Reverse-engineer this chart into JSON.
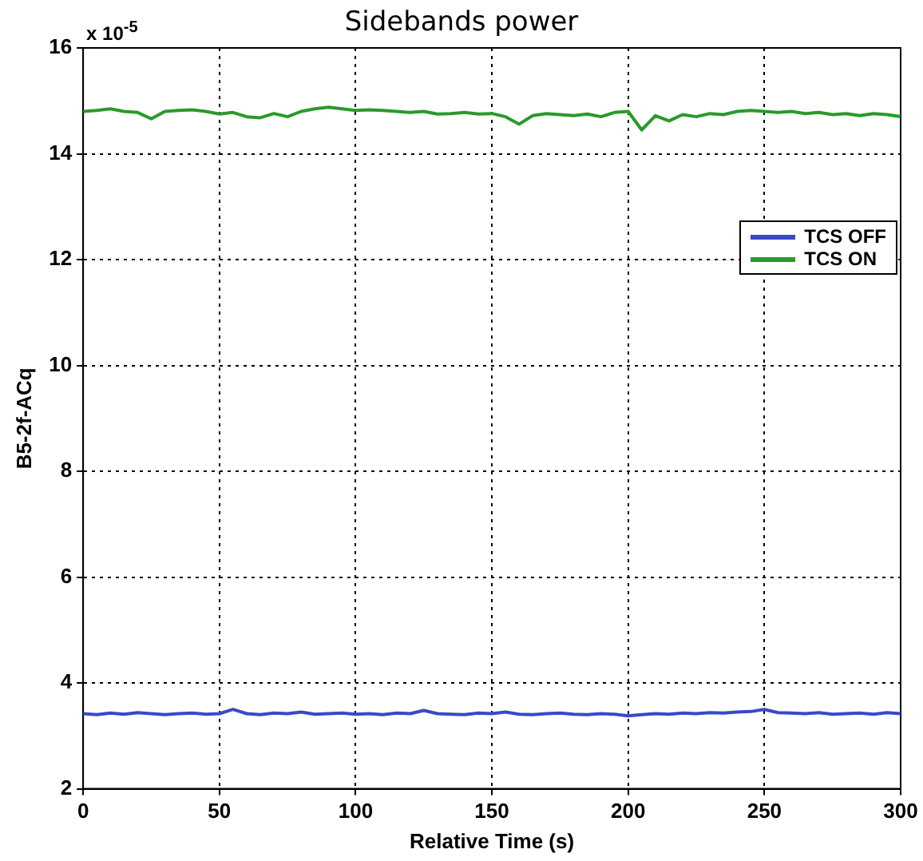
{
  "chart_data": {
    "type": "line",
    "title": "Sidebands power",
    "xlabel": "Relative Time (s)",
    "ylabel": "B5-2f-ACq",
    "annotations": [
      "x 10$^{-5}$"
    ],
    "x": [
      0,
      5,
      10,
      15,
      20,
      25,
      30,
      35,
      40,
      45,
      50,
      55,
      60,
      65,
      70,
      75,
      80,
      85,
      90,
      95,
      100,
      105,
      110,
      115,
      120,
      125,
      130,
      135,
      140,
      145,
      150,
      155,
      160,
      165,
      170,
      175,
      180,
      185,
      190,
      195,
      200,
      205,
      210,
      215,
      220,
      225,
      230,
      235,
      240,
      245,
      250,
      255,
      260,
      265,
      270,
      275,
      280,
      285,
      290,
      295,
      300
    ],
    "series": [
      {
        "name": "TCS OFF",
        "color": "#3a48c8",
        "values": [
          3.42,
          3.4,
          3.43,
          3.41,
          3.44,
          3.42,
          3.4,
          3.42,
          3.43,
          3.41,
          3.42,
          3.5,
          3.42,
          3.4,
          3.43,
          3.42,
          3.45,
          3.41,
          3.42,
          3.43,
          3.41,
          3.42,
          3.4,
          3.43,
          3.42,
          3.48,
          3.42,
          3.41,
          3.4,
          3.43,
          3.42,
          3.45,
          3.41,
          3.4,
          3.42,
          3.43,
          3.41,
          3.4,
          3.42,
          3.41,
          3.38,
          3.4,
          3.42,
          3.41,
          3.43,
          3.42,
          3.44,
          3.43,
          3.45,
          3.46,
          3.5,
          3.44,
          3.43,
          3.42,
          3.44,
          3.41,
          3.42,
          3.43,
          3.41,
          3.44,
          3.42
        ]
      },
      {
        "name": "TCS ON",
        "color": "#2a9a2a",
        "values": [
          14.8,
          14.82,
          14.85,
          14.8,
          14.78,
          14.66,
          14.8,
          14.82,
          14.83,
          14.8,
          14.75,
          14.78,
          14.7,
          14.68,
          14.76,
          14.7,
          14.8,
          14.85,
          14.88,
          14.85,
          14.82,
          14.83,
          14.82,
          14.8,
          14.78,
          14.8,
          14.75,
          14.76,
          14.78,
          14.75,
          14.76,
          14.7,
          14.56,
          14.72,
          14.76,
          14.74,
          14.72,
          14.75,
          14.7,
          14.78,
          14.8,
          14.45,
          14.72,
          14.62,
          14.74,
          14.7,
          14.76,
          14.74,
          14.8,
          14.82,
          14.8,
          14.78,
          14.8,
          14.76,
          14.78,
          14.74,
          14.76,
          14.72,
          14.76,
          14.74,
          14.7
        ]
      }
    ],
    "xlim": [
      0,
      300
    ],
    "xticks": [
      0,
      50,
      100,
      150,
      200,
      250,
      300
    ],
    "ylim": [
      2,
      16
    ],
    "yticks": [
      2,
      4,
      6,
      8,
      10,
      12,
      14,
      16
    ],
    "grid": true,
    "legend": "top right",
    "marker": "none",
    "line_style": "solid"
  }
}
